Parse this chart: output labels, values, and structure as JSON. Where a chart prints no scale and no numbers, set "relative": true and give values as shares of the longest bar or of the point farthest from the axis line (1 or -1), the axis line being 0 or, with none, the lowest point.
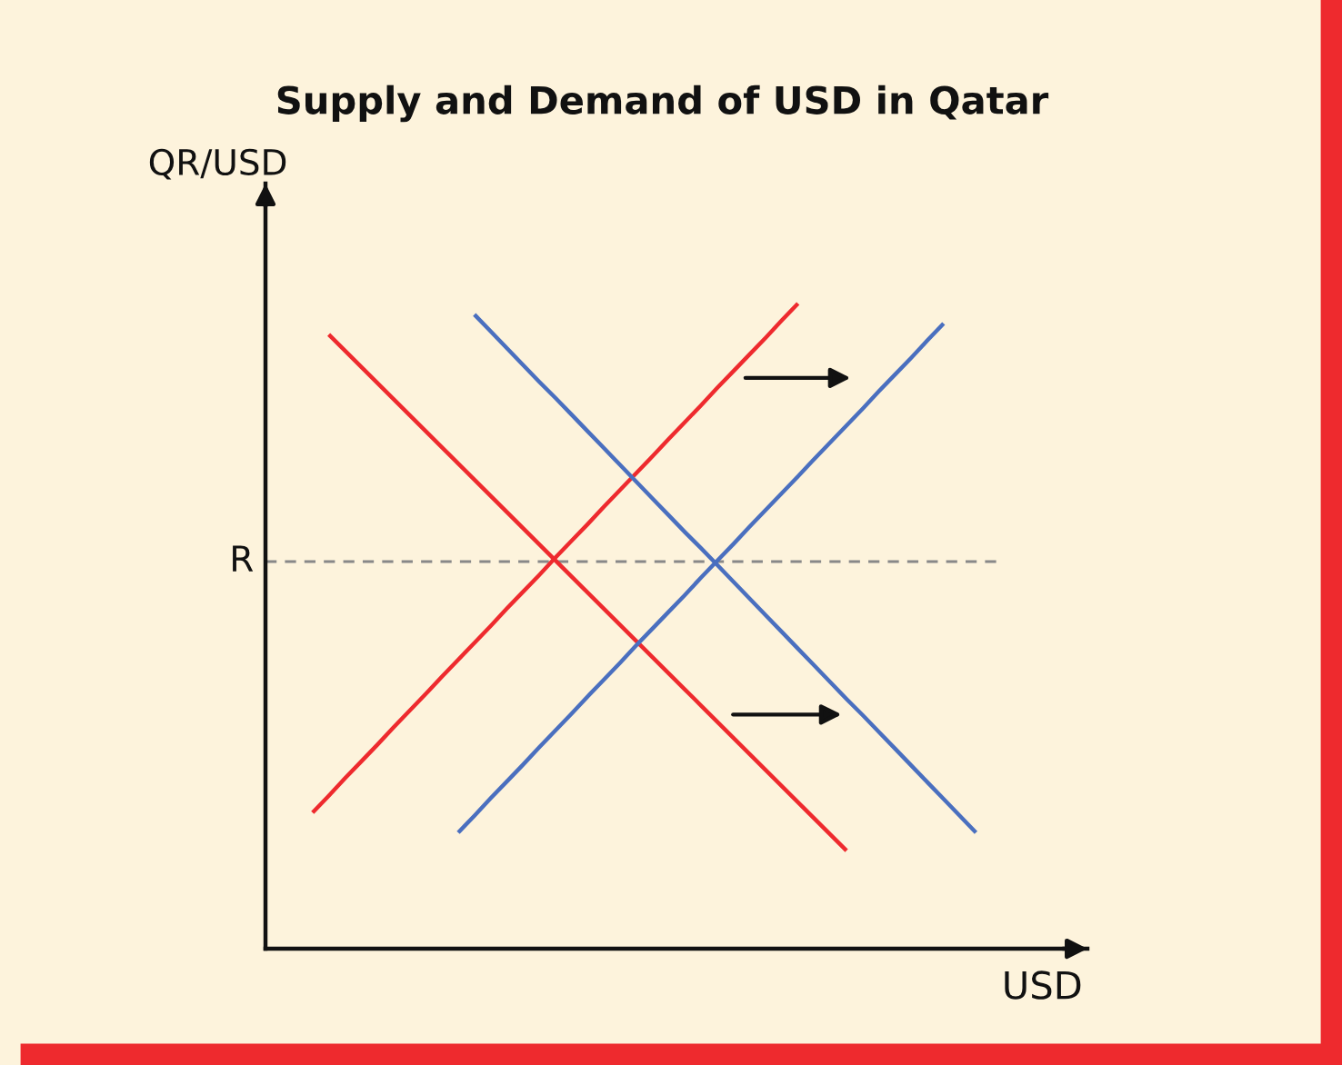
{
  "chart_data": {
    "type": "line",
    "title": "Supply and Demand of USD in Qatar",
    "xlabel": "USD",
    "ylabel": "QR/USD",
    "relative": true,
    "line_style": "solid",
    "categories": [
      null,
      null,
      null,
      null,
      null,
      null,
      null,
      null,
      null,
      null,
      null,
      null,
      null,
      null,
      null,
      null,
      null,
      null,
      null,
      null,
      null,
      null,
      null,
      null,
      null,
      null,
      null,
      null,
      null,
      null,
      null,
      null,
      null,
      null,
      null,
      null,
      null,
      null,
      null,
      null,
      null,
      null
    ],
    "series": [
      {
        "color": "#ee2a2e",
        "values": [
          null,
          0.952,
          0.927,
          0.902,
          0.877,
          0.852,
          0.827,
          0.802,
          0.777,
          0.752,
          0.727,
          0.702,
          0.677,
          0.652,
          0.627,
          0.602,
          0.577,
          0.552,
          0.527,
          0.502,
          0.477,
          0.452,
          0.427,
          0.402,
          0.377,
          0.352,
          0.327,
          0.302,
          0.277,
          0.252,
          0.227,
          0.202,
          0.177,
          0.152,
          null,
          null,
          null,
          null,
          null,
          null,
          null,
          null
        ]
      },
      {
        "color": "#ee2a2e",
        "values": [
          0.211,
          0.237,
          0.264,
          0.29,
          0.316,
          0.343,
          0.369,
          0.395,
          0.422,
          0.448,
          0.474,
          0.5,
          0.527,
          0.553,
          0.579,
          0.606,
          0.632,
          0.658,
          0.685,
          0.711,
          0.737,
          0.763,
          0.79,
          0.816,
          0.842,
          0.869,
          0.895,
          0.921,
          0.947,
          0.974,
          1,
          null,
          null,
          null,
          null,
          null,
          null,
          null,
          null,
          null,
          null,
          null
        ]
      },
      {
        "color": "#4a6fbf",
        "values": [
          null,
          null,
          null,
          null,
          null,
          null,
          null,
          null,
          null,
          null,
          0.983,
          0.957,
          0.931,
          0.905,
          0.879,
          0.854,
          0.828,
          0.802,
          0.776,
          0.75,
          0.724,
          0.698,
          0.672,
          0.646,
          0.621,
          0.595,
          0.569,
          0.543,
          0.517,
          0.491,
          0.465,
          0.439,
          0.413,
          0.387,
          0.362,
          0.336,
          0.31,
          0.284,
          0.258,
          0.232,
          0.206,
          0.18
        ]
      },
      {
        "color": "#4a6fbf",
        "values": [
          null,
          null,
          null,
          null,
          null,
          null,
          null,
          null,
          null,
          0.18,
          0.206,
          0.233,
          0.259,
          0.285,
          0.312,
          0.338,
          0.364,
          0.391,
          0.417,
          0.443,
          0.47,
          0.496,
          0.522,
          0.548,
          0.575,
          0.601,
          0.627,
          0.654,
          0.68,
          0.706,
          0.732,
          0.759,
          0.785,
          0.811,
          0.837,
          0.864,
          0.89,
          0.916,
          0.943,
          0.969,
          null,
          null
        ]
      }
    ],
    "ref_lines": [
      {
        "axis": "y",
        "value": 0.6,
        "label": "R",
        "color": "#888888",
        "line_style": "dashed"
      }
    ]
  }
}
